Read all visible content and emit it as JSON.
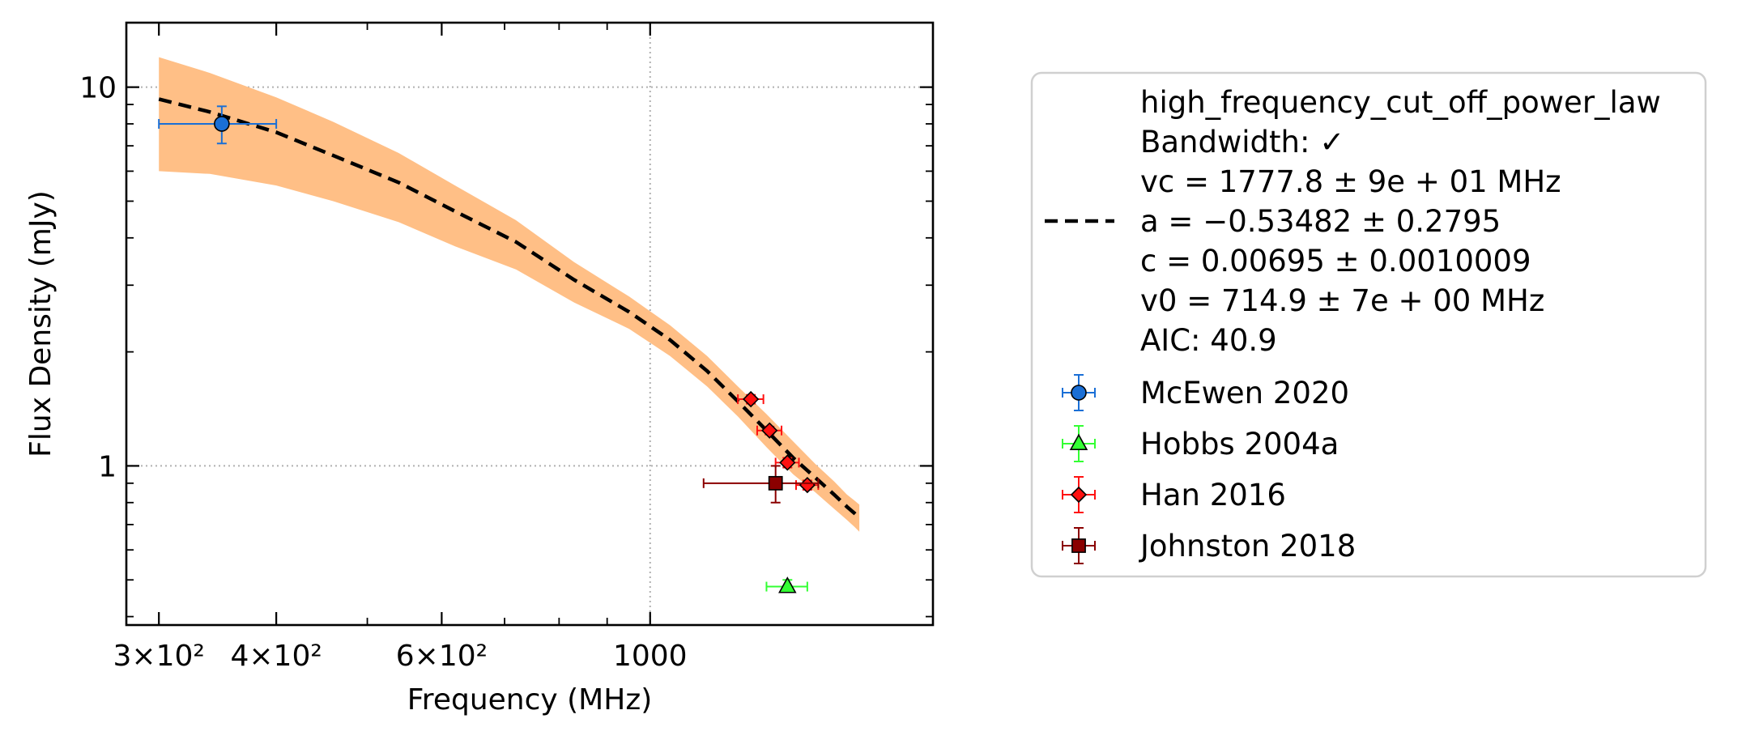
{
  "chart_data": {
    "type": "scatter",
    "xlabel": "Frequency (MHz)",
    "ylabel": "Flux Density (mJy)",
    "xscale": "log",
    "yscale": "log",
    "xlim": [
      277,
      2000
    ],
    "ylim": [
      0.38,
      14.8
    ],
    "grid": "dotted major gridlines",
    "legend_placement": "outside right",
    "x_ticks": [
      {
        "value": 300,
        "label": "3×10²"
      },
      {
        "value": 400,
        "label": "4×10²"
      },
      {
        "value": 600,
        "label": "6×10²"
      },
      {
        "value": 1000,
        "label": "1000"
      }
    ],
    "y_ticks": [
      {
        "value": 1,
        "label": "1"
      },
      {
        "value": 10,
        "label": "10"
      }
    ],
    "fit": {
      "label_lines": [
        "high_frequency_cut_off_power_law",
        "Bandwidth: ✓",
        "vc = 1777.8 ± 9e + 01 MHz",
        "a = −0.53482 ± 0.2795",
        "c = 0.00695 ± 0.0010009",
        "v0 = 714.9 ± 7e + 00 MHz",
        "AIC: 40.9"
      ],
      "line_color": "#000000",
      "band_color": "#ffbf86",
      "x": [
        300,
        340,
        400,
        460,
        540,
        620,
        720,
        830,
        950,
        1050,
        1150,
        1240,
        1330,
        1420,
        1500,
        1570,
        1620,
        1650,
        1670
      ],
      "y": [
        9.3,
        8.6,
        7.6,
        6.6,
        5.6,
        4.7,
        3.9,
        3.1,
        2.55,
        2.15,
        1.78,
        1.48,
        1.24,
        1.05,
        0.93,
        0.84,
        0.78,
        0.75,
        0.73
      ],
      "upper": [
        12.0,
        10.9,
        9.4,
        8.1,
        6.7,
        5.5,
        4.45,
        3.45,
        2.8,
        2.35,
        1.95,
        1.62,
        1.37,
        1.16,
        1.01,
        0.91,
        0.84,
        0.81,
        0.79
      ],
      "lower": [
        6.0,
        5.9,
        5.5,
        5.0,
        4.4,
        3.8,
        3.3,
        2.7,
        2.3,
        1.95,
        1.62,
        1.35,
        1.12,
        0.95,
        0.85,
        0.77,
        0.72,
        0.69,
        0.67
      ]
    },
    "series": [
      {
        "name": "McEwen 2020",
        "marker": "circle",
        "color": "#1a6fd6",
        "points": [
          {
            "x": 350,
            "y": 8.0,
            "xerr_low": 300,
            "xerr_high": 400,
            "yerr_low": 7.1,
            "yerr_high": 8.9
          }
        ]
      },
      {
        "name": "Hobbs 2004a",
        "marker": "triangle",
        "color": "#33ff33",
        "points": [
          {
            "x": 1400,
            "y": 0.48,
            "xerr_low": 1330,
            "xerr_high": 1470,
            "yerr_low": 0.465,
            "yerr_high": 0.5
          }
        ]
      },
      {
        "name": "Han 2016",
        "marker": "diamond",
        "color": "#ff1111",
        "points": [
          {
            "x": 1280,
            "y": 1.5,
            "xerr_low": 1240,
            "xerr_high": 1320,
            "yerr_low": 1.46,
            "yerr_high": 1.54
          },
          {
            "x": 1340,
            "y": 1.24,
            "xerr_low": 1300,
            "xerr_high": 1380,
            "yerr_low": 1.21,
            "yerr_high": 1.27
          },
          {
            "x": 1400,
            "y": 1.02,
            "xerr_low": 1360,
            "xerr_high": 1440,
            "yerr_low": 0.99,
            "yerr_high": 1.05
          },
          {
            "x": 1470,
            "y": 0.89,
            "xerr_low": 1430,
            "xerr_high": 1510,
            "yerr_low": 0.865,
            "yerr_high": 0.915
          }
        ]
      },
      {
        "name": "Johnston 2018",
        "marker": "square",
        "color": "#8b0000",
        "points": [
          {
            "x": 1360,
            "y": 0.9,
            "xerr_low": 1140,
            "xerr_high": 1510,
            "yerr_low": 0.8,
            "yerr_high": 1.0
          }
        ]
      }
    ]
  }
}
